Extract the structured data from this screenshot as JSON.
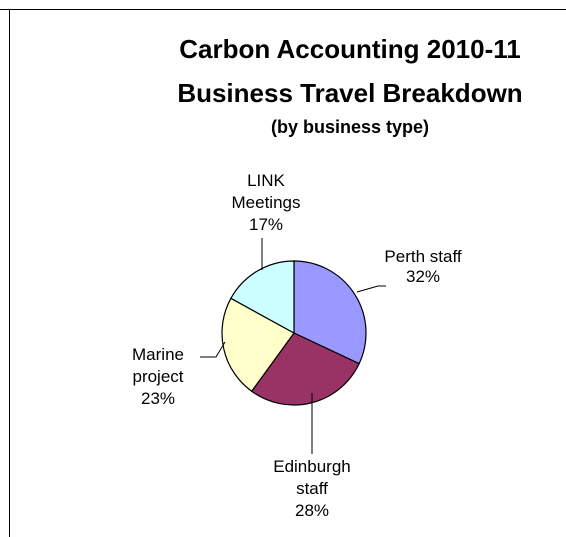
{
  "chart_data": {
    "type": "pie",
    "title": "Carbon Accounting 2010-11",
    "title_line2": "Business Travel Breakdown",
    "subtitle": "(by business type)",
    "categories": [
      "Perth staff",
      "Edinburgh staff",
      "Marine project",
      "LINK Meetings"
    ],
    "values": [
      32,
      28,
      23,
      17
    ],
    "value_labels": [
      "32%",
      "28%",
      "23%",
      "17%"
    ],
    "label_lines": [
      [
        "Perth staff",
        "32%"
      ],
      [
        "Edinburgh",
        "staff",
        "28%"
      ],
      [
        "Marine",
        "project",
        "23%"
      ],
      [
        "LINK",
        "Meetings",
        "17%"
      ]
    ],
    "colors": [
      "#9999ff",
      "#993366",
      "#ffffcc",
      "#ccffff"
    ],
    "start_angle": "12 o'clock",
    "direction": "clockwise",
    "legend": "none",
    "edge_color": "#000000",
    "border_color": "#000000"
  }
}
